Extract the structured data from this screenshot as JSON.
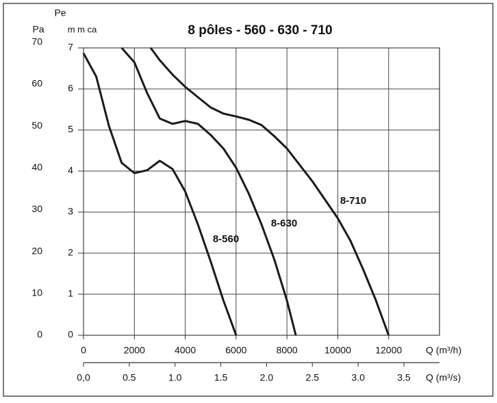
{
  "chart_data": {
    "type": "line",
    "title": "8 pôles - 560 - 630 - 710",
    "y_label": "m m ca",
    "y_label_top": "Pe",
    "y2_label": "Pa",
    "x_label": "Q (m³/h)",
    "x2_label": "Q (m³/s)",
    "xlim": [
      0,
      14000
    ],
    "xticks": [
      0,
      2000,
      4000,
      6000,
      8000,
      10000,
      12000
    ],
    "x2lim": [
      0,
      3.889
    ],
    "x2ticks": [
      {
        "value": 0,
        "label": "0,0"
      },
      0.5,
      {
        "value": 1,
        "label": "1.0"
      },
      1.5,
      {
        "value": 2,
        "label": "2.0"
      },
      2.5,
      {
        "value": 3,
        "label": "3.0"
      },
      3.5
    ],
    "ylim": [
      0,
      7
    ],
    "yticks": [
      0,
      1,
      2,
      3,
      4,
      5,
      6,
      7
    ],
    "y2lim": [
      0,
      68.67
    ],
    "y2ticks": [
      0,
      10,
      20,
      30,
      40,
      50,
      60,
      70
    ],
    "grid": true,
    "series": [
      {
        "name": "8-560",
        "color": "#1a1a1a",
        "x": [
          0,
          500,
          1000,
          1500,
          2000,
          2500,
          3000,
          3500,
          4000,
          4500,
          5000,
          5500,
          6000
        ],
        "values": [
          6.87,
          6.3,
          5.1,
          4.2,
          3.95,
          4.02,
          4.25,
          4.05,
          3.5,
          2.7,
          1.8,
          0.85,
          0
        ]
      },
      {
        "name": "8-630",
        "color": "#1a1a1a",
        "x": [
          1500,
          2000,
          2500,
          3000,
          3500,
          4000,
          4500,
          5000,
          5500,
          6000,
          6500,
          7000,
          7500,
          8000,
          8350
        ],
        "values": [
          7.0,
          6.65,
          5.9,
          5.28,
          5.15,
          5.22,
          5.15,
          4.88,
          4.55,
          4.08,
          3.45,
          2.7,
          1.85,
          0.85,
          0
        ]
      },
      {
        "name": "8-710",
        "color": "#1a1a1a",
        "x": [
          2640,
          3000,
          3500,
          4000,
          4500,
          5000,
          5500,
          6000,
          6500,
          7000,
          7500,
          8000,
          8500,
          9000,
          9500,
          10000,
          10500,
          11000,
          11500,
          12000
        ],
        "values": [
          7.0,
          6.7,
          6.35,
          6.05,
          5.8,
          5.55,
          5.4,
          5.33,
          5.25,
          5.12,
          4.85,
          4.55,
          4.15,
          3.75,
          3.3,
          2.85,
          2.3,
          1.6,
          0.85,
          0
        ]
      }
    ]
  }
}
